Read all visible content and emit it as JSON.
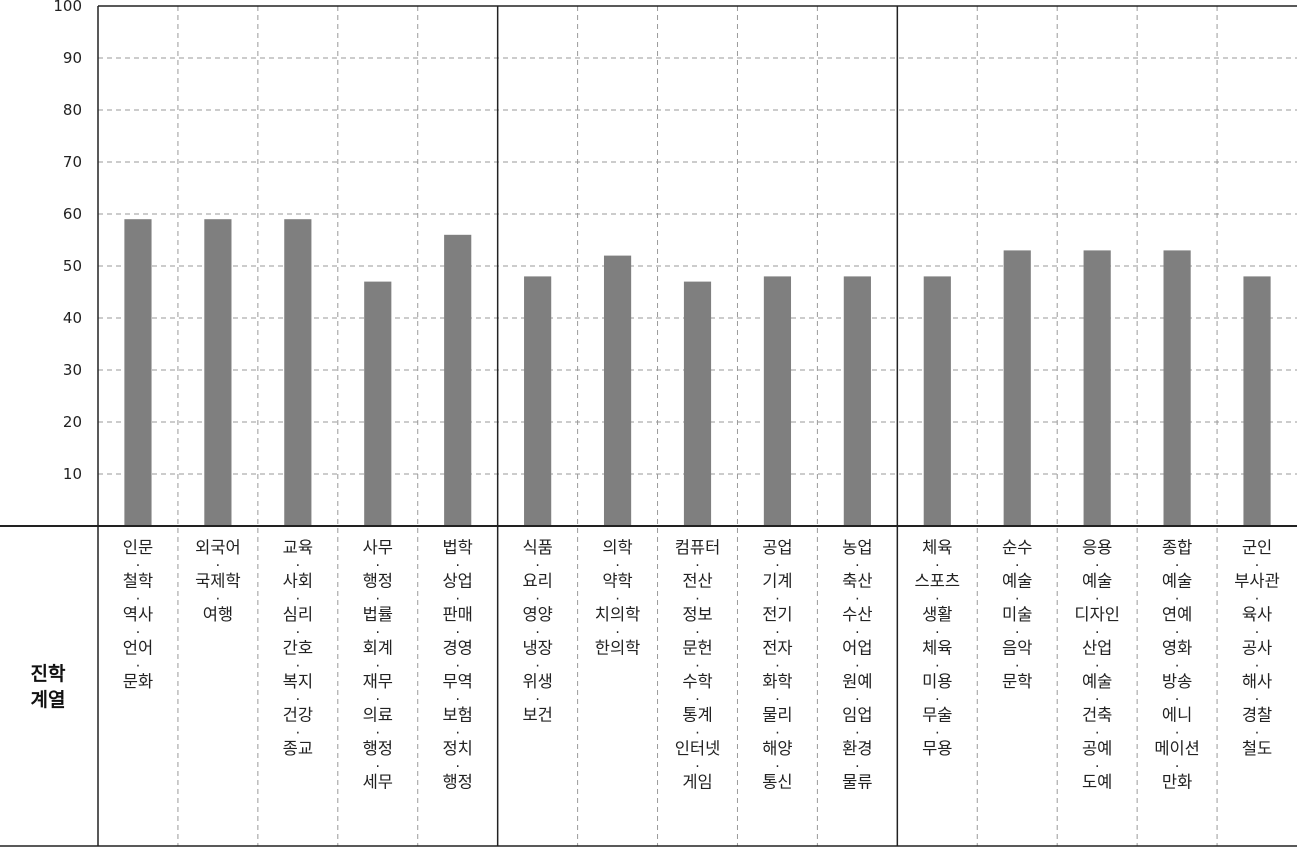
{
  "chart_data": {
    "type": "bar",
    "ylim": [
      0,
      100
    ],
    "yticks": [
      10,
      20,
      30,
      40,
      50,
      60,
      70,
      80,
      90,
      100
    ],
    "grid": true,
    "legend": "none",
    "row_label": [
      "진학",
      "계열"
    ],
    "groups": [
      5,
      5,
      5
    ],
    "categories": [
      {
        "lines": [
          "인문",
          "철학",
          "역사",
          "언어",
          "문화"
        ]
      },
      {
        "lines": [
          "외국어",
          "국제학",
          "여행"
        ]
      },
      {
        "lines": [
          "교육",
          "사회",
          "심리",
          "간호",
          "복지",
          "건강",
          "종교"
        ]
      },
      {
        "lines": [
          "사무",
          "행정",
          "법률",
          "회계",
          "재무",
          "의료",
          "행정",
          "세무"
        ]
      },
      {
        "lines": [
          "법학",
          "상업",
          "판매",
          "경영",
          "무역",
          "보험",
          "정치",
          "행정"
        ]
      },
      {
        "lines": [
          "식품",
          "요리",
          "영양",
          "냉장",
          "위생",
          "보건"
        ]
      },
      {
        "lines": [
          "의학",
          "약학",
          "치의학",
          "한의학"
        ]
      },
      {
        "lines": [
          "컴퓨터",
          "전산",
          "정보",
          "문헌",
          "수학",
          "통계",
          "인터넷",
          "게임"
        ]
      },
      {
        "lines": [
          "공업",
          "기계",
          "전기",
          "전자",
          "화학",
          "물리",
          "해양",
          "통신"
        ]
      },
      {
        "lines": [
          "농업",
          "축산",
          "수산",
          "어업",
          "원예",
          "임업",
          "환경",
          "물류"
        ]
      },
      {
        "lines": [
          "체육",
          "스포츠",
          "생활",
          "체육",
          "미용",
          "무술",
          "무용"
        ]
      },
      {
        "lines": [
          "순수",
          "예술",
          "미술",
          "음악",
          "문학"
        ]
      },
      {
        "lines": [
          "응용",
          "예술",
          "디자인",
          "산업",
          "예술",
          "건축",
          "공예",
          "도예"
        ]
      },
      {
        "lines": [
          "종합",
          "예술",
          "연예",
          "영화",
          "방송",
          "에니",
          "메이션",
          "만화"
        ]
      },
      {
        "lines": [
          "군인",
          "부사관",
          "육사",
          "공사",
          "해사",
          "경찰",
          "철도"
        ]
      }
    ],
    "values": [
      59,
      59,
      59,
      47,
      56,
      48,
      52,
      47,
      48,
      48,
      48,
      53,
      53,
      53,
      48
    ],
    "bar_color": "#7f7f7f"
  }
}
